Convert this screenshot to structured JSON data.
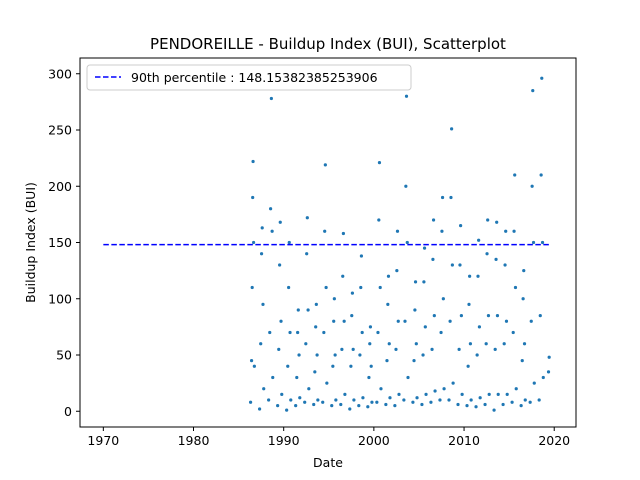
{
  "chart_data": {
    "type": "scatter",
    "title": "PENDOREILLE - Buildup Index (BUI), Scatterplot",
    "xlabel": "Date",
    "ylabel": "Buildup Index (BUI)",
    "xlim": [
      "1967-06-01",
      "2022-06-01"
    ],
    "ylim": [
      -14,
      314
    ],
    "xticks": [
      {
        "value": "1970-01-01",
        "label": "1970"
      },
      {
        "value": "1980-01-01",
        "label": "1980"
      },
      {
        "value": "1990-01-01",
        "label": "1990"
      },
      {
        "value": "2000-01-01",
        "label": "2000"
      },
      {
        "value": "2010-01-01",
        "label": "2010"
      },
      {
        "value": "2020-01-01",
        "label": "2020"
      }
    ],
    "yticks": [
      0,
      50,
      100,
      150,
      200,
      250,
      300
    ],
    "grid": false,
    "legend_position": "upper-left",
    "reference_line": {
      "label": "90th percentile : 148.15382385253906",
      "value": 148.15382385253906,
      "x_range": [
        "1970-01-01",
        "2019-07-01"
      ],
      "color": "#0000ff",
      "style": "dashed"
    },
    "series": [
      {
        "color": "#1f77b4",
        "points": [
          [
            "1986-05-01",
            8
          ],
          [
            "1986-06-10",
            45
          ],
          [
            "1986-07-05",
            110
          ],
          [
            "1986-07-25",
            190
          ],
          [
            "1986-08-10",
            222
          ],
          [
            "1986-09-01",
            150
          ],
          [
            "1986-10-01",
            40
          ],
          [
            "1987-05-01",
            2
          ],
          [
            "1987-06-15",
            60
          ],
          [
            "1987-07-20",
            140
          ],
          [
            "1987-08-15",
            163
          ],
          [
            "1987-09-15",
            95
          ],
          [
            "1987-10-15",
            20
          ],
          [
            "1988-05-01",
            10
          ],
          [
            "1988-06-15",
            70
          ],
          [
            "1988-07-20",
            180
          ],
          [
            "1988-08-20",
            278
          ],
          [
            "1988-09-20",
            160
          ],
          [
            "1988-10-15",
            30
          ],
          [
            "1989-05-01",
            5
          ],
          [
            "1989-06-15",
            55
          ],
          [
            "1989-07-20",
            130
          ],
          [
            "1989-08-15",
            168
          ],
          [
            "1989-09-15",
            80
          ],
          [
            "1989-10-15",
            15
          ],
          [
            "1990-05-01",
            1
          ],
          [
            "1990-06-15",
            40
          ],
          [
            "1990-07-20",
            110
          ],
          [
            "1990-08-15",
            150
          ],
          [
            "1990-09-15",
            70
          ],
          [
            "1990-10-15",
            10
          ],
          [
            "1991-05-01",
            5
          ],
          [
            "1991-06-15",
            30
          ],
          [
            "1991-07-20",
            70
          ],
          [
            "1991-08-15",
            90
          ],
          [
            "1991-09-15",
            50
          ],
          [
            "1991-10-15",
            12
          ],
          [
            "1992-05-01",
            8
          ],
          [
            "1992-06-15",
            60
          ],
          [
            "1992-07-20",
            140
          ],
          [
            "1992-08-15",
            172
          ],
          [
            "1992-09-15",
            90
          ],
          [
            "1992-10-15",
            20
          ],
          [
            "1993-05-01",
            6
          ],
          [
            "1993-06-15",
            35
          ],
          [
            "1993-07-20",
            75
          ],
          [
            "1993-08-15",
            95
          ],
          [
            "1993-09-15",
            50
          ],
          [
            "1993-10-15",
            10
          ],
          [
            "1994-05-01",
            8
          ],
          [
            "1994-06-15",
            70
          ],
          [
            "1994-07-20",
            160
          ],
          [
            "1994-08-15",
            219
          ],
          [
            "1994-09-15",
            110
          ],
          [
            "1994-10-15",
            25
          ],
          [
            "1995-05-01",
            5
          ],
          [
            "1995-06-15",
            40
          ],
          [
            "1995-07-20",
            80
          ],
          [
            "1995-08-15",
            100
          ],
          [
            "1995-09-15",
            50
          ],
          [
            "1995-10-15",
            10
          ],
          [
            "1996-05-01",
            6
          ],
          [
            "1996-06-15",
            55
          ],
          [
            "1996-07-20",
            120
          ],
          [
            "1996-08-15",
            158
          ],
          [
            "1996-09-15",
            80
          ],
          [
            "1996-10-15",
            15
          ],
          [
            "1997-05-01",
            2
          ],
          [
            "1997-06-15",
            40
          ],
          [
            "1997-07-20",
            85
          ],
          [
            "1997-08-15",
            105
          ],
          [
            "1997-09-15",
            55
          ],
          [
            "1997-10-15",
            10
          ],
          [
            "1998-05-01",
            5
          ],
          [
            "1998-06-15",
            50
          ],
          [
            "1998-07-20",
            110
          ],
          [
            "1998-08-15",
            138
          ],
          [
            "1998-09-15",
            70
          ],
          [
            "1998-10-15",
            12
          ],
          [
            "1999-05-01",
            4
          ],
          [
            "1999-06-15",
            30
          ],
          [
            "1999-07-20",
            60
          ],
          [
            "1999-08-15",
            75
          ],
          [
            "1999-09-15",
            40
          ],
          [
            "1999-10-15",
            8
          ],
          [
            "2000-05-01",
            8
          ],
          [
            "2000-06-15",
            70
          ],
          [
            "2000-07-20",
            170
          ],
          [
            "2000-08-15",
            221
          ],
          [
            "2000-09-15",
            110
          ],
          [
            "2000-10-15",
            20
          ],
          [
            "2001-05-01",
            6
          ],
          [
            "2001-06-15",
            45
          ],
          [
            "2001-07-20",
            95
          ],
          [
            "2001-08-15",
            120
          ],
          [
            "2001-09-15",
            60
          ],
          [
            "2001-10-15",
            12
          ],
          [
            "2002-05-01",
            5
          ],
          [
            "2002-06-15",
            55
          ],
          [
            "2002-07-20",
            125
          ],
          [
            "2002-08-15",
            160
          ],
          [
            "2002-09-15",
            80
          ],
          [
            "2002-10-15",
            15
          ],
          [
            "2003-05-01",
            10
          ],
          [
            "2003-06-15",
            80
          ],
          [
            "2003-07-20",
            200
          ],
          [
            "2003-08-15",
            280
          ],
          [
            "2003-09-15",
            150
          ],
          [
            "2003-10-15",
            30
          ],
          [
            "2004-05-01",
            8
          ],
          [
            "2004-06-15",
            45
          ],
          [
            "2004-07-20",
            90
          ],
          [
            "2004-08-15",
            115
          ],
          [
            "2004-09-15",
            60
          ],
          [
            "2004-10-15",
            12
          ],
          [
            "2005-05-01",
            6
          ],
          [
            "2005-06-15",
            50
          ],
          [
            "2005-07-20",
            115
          ],
          [
            "2005-08-15",
            145
          ],
          [
            "2005-09-15",
            75
          ],
          [
            "2005-10-15",
            15
          ],
          [
            "2006-05-01",
            8
          ],
          [
            "2006-06-15",
            55
          ],
          [
            "2006-07-20",
            135
          ],
          [
            "2006-08-15",
            170
          ],
          [
            "2006-09-15",
            85
          ],
          [
            "2006-10-15",
            18
          ],
          [
            "2007-05-01",
            10
          ],
          [
            "2007-06-15",
            70
          ],
          [
            "2007-07-20",
            160
          ],
          [
            "2007-08-15",
            190
          ],
          [
            "2007-09-15",
            100
          ],
          [
            "2007-10-15",
            20
          ],
          [
            "2008-05-01",
            10
          ],
          [
            "2008-06-15",
            80
          ],
          [
            "2008-07-20",
            190
          ],
          [
            "2008-08-15",
            251
          ],
          [
            "2008-09-15",
            130
          ],
          [
            "2008-10-15",
            25
          ],
          [
            "2009-05-01",
            6
          ],
          [
            "2009-06-15",
            55
          ],
          [
            "2009-07-20",
            130
          ],
          [
            "2009-08-15",
            165
          ],
          [
            "2009-09-15",
            85
          ],
          [
            "2009-10-15",
            15
          ],
          [
            "2010-05-01",
            5
          ],
          [
            "2010-06-15",
            40
          ],
          [
            "2010-07-20",
            95
          ],
          [
            "2010-08-15",
            120
          ],
          [
            "2010-09-15",
            60
          ],
          [
            "2010-10-15",
            10
          ],
          [
            "2011-05-01",
            4
          ],
          [
            "2011-06-15",
            50
          ],
          [
            "2011-07-20",
            120
          ],
          [
            "2011-08-15",
            152
          ],
          [
            "2011-09-15",
            75
          ],
          [
            "2011-10-15",
            12
          ],
          [
            "2012-05-01",
            6
          ],
          [
            "2012-06-15",
            60
          ],
          [
            "2012-07-20",
            140
          ],
          [
            "2012-08-15",
            170
          ],
          [
            "2012-09-15",
            85
          ],
          [
            "2012-10-15",
            15
          ],
          [
            "2013-05-01",
            1
          ],
          [
            "2013-06-15",
            55
          ],
          [
            "2013-07-20",
            135
          ],
          [
            "2013-08-15",
            168
          ],
          [
            "2013-09-15",
            85
          ],
          [
            "2013-10-15",
            15
          ],
          [
            "2014-05-01",
            6
          ],
          [
            "2014-06-15",
            60
          ],
          [
            "2014-07-20",
            130
          ],
          [
            "2014-08-15",
            160
          ],
          [
            "2014-09-15",
            80
          ],
          [
            "2014-10-15",
            15
          ],
          [
            "2015-05-01",
            8
          ],
          [
            "2015-06-15",
            70
          ],
          [
            "2015-07-20",
            160
          ],
          [
            "2015-08-15",
            210
          ],
          [
            "2015-09-15",
            110
          ],
          [
            "2015-10-15",
            20
          ],
          [
            "2016-05-01",
            5
          ],
          [
            "2016-06-15",
            45
          ],
          [
            "2016-07-20",
            100
          ],
          [
            "2016-08-15",
            125
          ],
          [
            "2016-09-15",
            60
          ],
          [
            "2016-10-15",
            10
          ],
          [
            "2017-05-01",
            8
          ],
          [
            "2017-06-15",
            80
          ],
          [
            "2017-07-20",
            200
          ],
          [
            "2017-08-15",
            285
          ],
          [
            "2017-09-15",
            150
          ],
          [
            "2017-10-15",
            25
          ],
          [
            "2018-05-01",
            10
          ],
          [
            "2018-06-15",
            85
          ],
          [
            "2018-07-20",
            210
          ],
          [
            "2018-08-15",
            296
          ],
          [
            "2018-09-15",
            150
          ],
          [
            "2018-10-15",
            30
          ],
          [
            "2019-05-15",
            35
          ],
          [
            "2019-06-10",
            48
          ]
        ]
      }
    ]
  }
}
